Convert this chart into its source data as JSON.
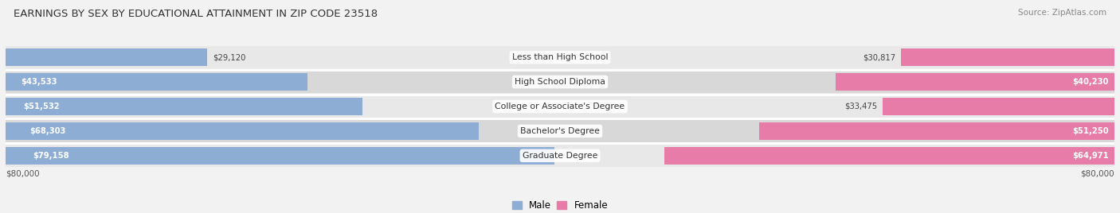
{
  "title": "EARNINGS BY SEX BY EDUCATIONAL ATTAINMENT IN ZIP CODE 23518",
  "source": "Source: ZipAtlas.com",
  "categories": [
    "Less than High School",
    "High School Diploma",
    "College or Associate's Degree",
    "Bachelor's Degree",
    "Graduate Degree"
  ],
  "male_values": [
    29120,
    43533,
    51532,
    68303,
    79158
  ],
  "female_values": [
    30817,
    40230,
    33475,
    51250,
    64971
  ],
  "max_value": 80000,
  "male_color": "#8eadd4",
  "female_color": "#e87ca8",
  "male_label": "Male",
  "female_label": "Female",
  "row_colors": [
    "#e8e8e8",
    "#d8d8d8"
  ],
  "axis_label_left": "$80,000",
  "axis_label_right": "$80,000",
  "bg_color": "#f2f2f2"
}
